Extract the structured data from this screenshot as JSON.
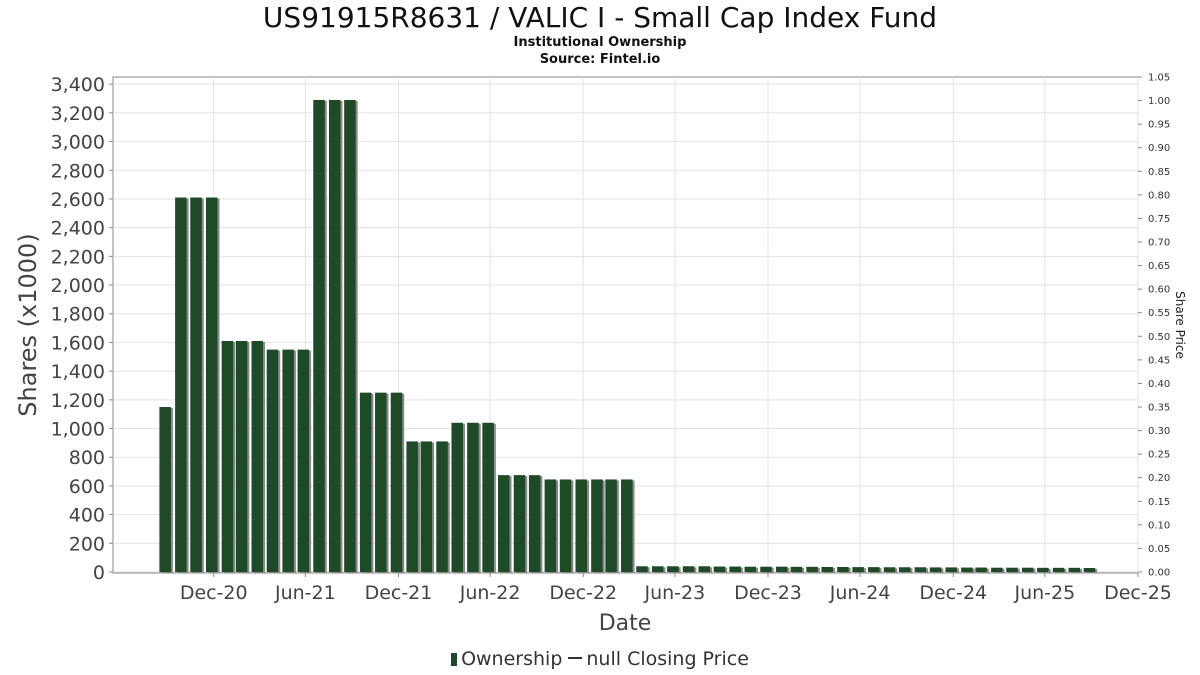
{
  "chart_data": {
    "type": "bar",
    "title": "US91915R8631 / VALIC I - Small Cap Index Fund",
    "subtitle": "Institutional Ownership",
    "source": "Source: Fintel.io",
    "xlabel": "Date",
    "ylabel": "Shares (x1000)",
    "y2label": "Share Price",
    "ylim": [
      0,
      3450
    ],
    "y2lim": [
      0,
      1.05
    ],
    "yticks": [
      "0",
      "200",
      "400",
      "600",
      "800",
      "1,000",
      "1,200",
      "1,400",
      "1,600",
      "1,800",
      "2,000",
      "2,200",
      "2,400",
      "2,600",
      "2,800",
      "3,000",
      "3,200",
      "3,400"
    ],
    "y2ticks": [
      "0.00",
      "0.05",
      "0.10",
      "0.15",
      "0.20",
      "0.25",
      "0.30",
      "0.35",
      "0.40",
      "0.45",
      "0.50",
      "0.55",
      "0.60",
      "0.65",
      "0.70",
      "0.75",
      "0.80",
      "0.85",
      "0.90",
      "0.95",
      "1.00",
      "1.05"
    ],
    "xlim": [
      "2020-06-15",
      "2025-12-31"
    ],
    "xticks": [
      {
        "date": "2020-12-31",
        "label": "Dec-20"
      },
      {
        "date": "2021-06-30",
        "label": "Jun-21"
      },
      {
        "date": "2021-12-31",
        "label": "Dec-21"
      },
      {
        "date": "2022-06-30",
        "label": "Jun-22"
      },
      {
        "date": "2022-12-31",
        "label": "Dec-22"
      },
      {
        "date": "2023-06-30",
        "label": "Jun-23"
      },
      {
        "date": "2023-12-31",
        "label": "Dec-23"
      },
      {
        "date": "2024-06-30",
        "label": "Jun-24"
      },
      {
        "date": "2024-12-31",
        "label": "Dec-24"
      },
      {
        "date": "2025-06-30",
        "label": "Jun-25"
      },
      {
        "date": "2025-12-31",
        "label": "Dec-25"
      }
    ],
    "grid": true,
    "legend_position": "bottom",
    "series": [
      {
        "name": "Ownership",
        "color": "#1e4a28",
        "x": [
          "2020-09-30",
          "2020-10-31",
          "2020-11-30",
          "2020-12-31",
          "2021-01-31",
          "2021-02-28",
          "2021-03-31",
          "2021-04-30",
          "2021-05-31",
          "2021-06-30",
          "2021-07-31",
          "2021-08-31",
          "2021-09-30",
          "2021-10-31",
          "2021-11-30",
          "2021-12-31",
          "2022-01-31",
          "2022-02-28",
          "2022-03-31",
          "2022-04-30",
          "2022-05-31",
          "2022-06-30",
          "2022-07-31",
          "2022-08-31",
          "2022-09-30",
          "2022-10-31",
          "2022-11-30",
          "2022-12-31",
          "2023-01-31",
          "2023-02-28",
          "2023-03-31",
          "2023-04-30",
          "2023-05-31",
          "2023-06-30",
          "2023-07-31",
          "2023-08-31",
          "2023-09-30",
          "2023-10-31",
          "2023-11-30",
          "2023-12-31",
          "2024-01-31",
          "2024-02-29",
          "2024-03-31",
          "2024-04-30",
          "2024-05-31",
          "2024-06-30",
          "2024-07-31",
          "2024-08-31",
          "2024-09-30",
          "2024-10-31",
          "2024-11-30",
          "2024-12-31",
          "2025-01-31",
          "2025-02-28",
          "2025-03-31",
          "2025-04-30",
          "2025-05-31",
          "2025-06-30",
          "2025-07-31",
          "2025-08-31",
          "2025-09-30"
        ],
        "values": [
          1150,
          2610,
          2610,
          2610,
          1610,
          1610,
          1610,
          1550,
          1550,
          1550,
          3290,
          3290,
          3290,
          1250,
          1250,
          1250,
          910,
          910,
          910,
          1040,
          1040,
          1040,
          675,
          675,
          675,
          645,
          645,
          645,
          645,
          645,
          645,
          40,
          40,
          40,
          40,
          40,
          38,
          38,
          37,
          37,
          37,
          36,
          36,
          35,
          35,
          34,
          34,
          33,
          33,
          33,
          32,
          32,
          31,
          31,
          30,
          30,
          30,
          29,
          29,
          29,
          28
        ]
      },
      {
        "name": "null Closing Price",
        "color": "#333333",
        "values": []
      }
    ]
  },
  "legend": {
    "ownership": "Ownership",
    "price": "null Closing Price"
  }
}
